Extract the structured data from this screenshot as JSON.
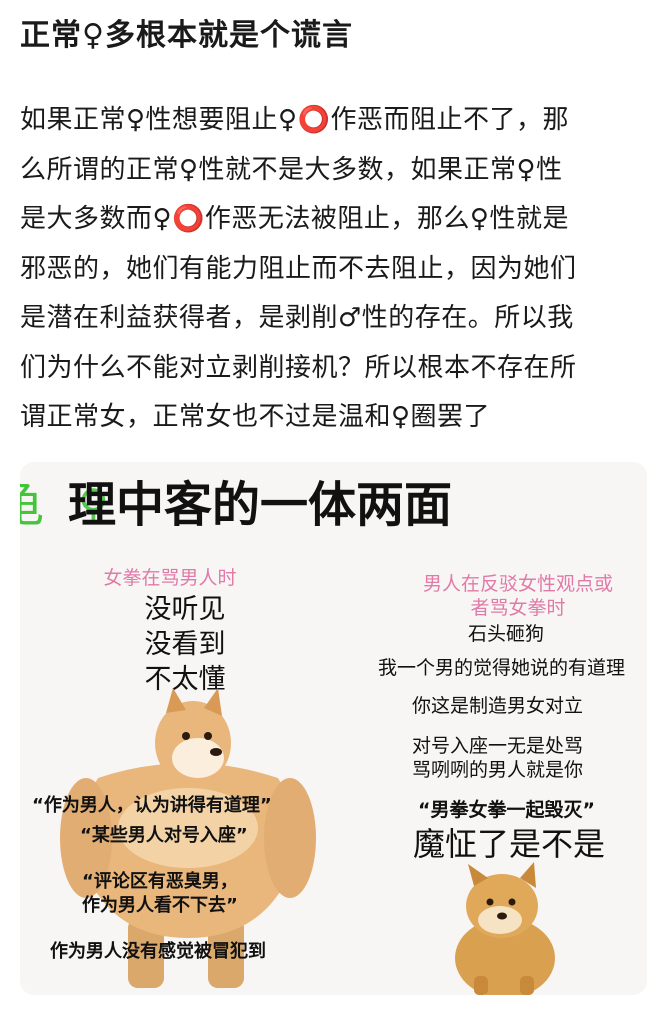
{
  "post": {
    "title": "正常♀多根本就是个谎言",
    "lines": [
      "如果正常♀性想要阻止♀⭕作恶而阻止不了，那",
      "么所谓的正常♀性就不是大多数，如果正常♀性",
      "是大多数而♀⭕作恶无法被阻止，那么♀性就是",
      "邪恶的，她们有能力阻止而不去阻止，因为她们",
      "是潜在利益获得者，是剥削♂性的存在。所以我",
      "们为什么不能对立剥削接机？所以根本不存在所",
      "谓正常女，正常女也不过是温和♀圈罢了"
    ]
  },
  "meme": {
    "header_green_1": "龟",
    "header_green_2": "⚲",
    "header_main": "理中客的一体两面",
    "left": {
      "caption": "女拳在骂男人时",
      "big_lines": [
        "没听见",
        "没看到",
        "不太懂"
      ],
      "quotes": [
        "“作为男人，认为讲得有道理”",
        "“某些男人对号入座”",
        "“评论区有恶臭男，",
        "作为男人看不下去”",
        "作为男人没有感觉被冒犯到"
      ]
    },
    "right": {
      "caption_1": "男人在反驳女性观点或",
      "caption_2": "者骂女拳时",
      "lines": [
        "石头砸狗",
        "我一个男的觉得她说的有道理",
        "你这是制造男女对立",
        "对号入座一无是处骂",
        "骂咧咧的男人就是你",
        "“男拳女拳一起毁灭”"
      ],
      "big": "魔怔了是不是"
    },
    "colors": {
      "caption_pink": "#e07aa8",
      "header_green": "#43c43b",
      "doge_fur": "#e9b77b"
    }
  }
}
